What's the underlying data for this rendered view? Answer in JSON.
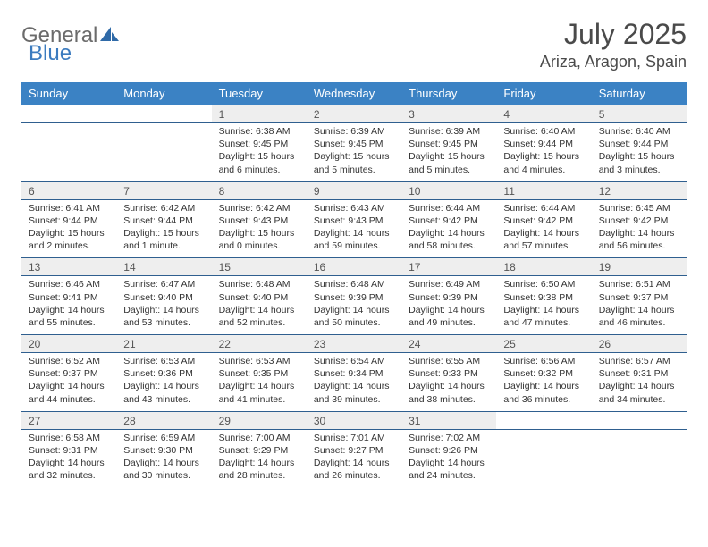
{
  "logo": {
    "part1": "General",
    "part2": "Blue"
  },
  "title": "July 2025",
  "location": "Ariza, Aragon, Spain",
  "colors": {
    "header_bg": "#3b82c4",
    "header_text": "#ffffff",
    "row_border": "#2f5f8f",
    "daynum_bg": "#eeeeee",
    "logo_gray": "#6b6b6b",
    "logo_blue": "#3b7bbf"
  },
  "day_headers": [
    "Sunday",
    "Monday",
    "Tuesday",
    "Wednesday",
    "Thursday",
    "Friday",
    "Saturday"
  ],
  "weeks": [
    [
      null,
      null,
      {
        "n": "1",
        "sunrise": "6:38 AM",
        "sunset": "9:45 PM",
        "daylight": "15 hours and 6 minutes."
      },
      {
        "n": "2",
        "sunrise": "6:39 AM",
        "sunset": "9:45 PM",
        "daylight": "15 hours and 5 minutes."
      },
      {
        "n": "3",
        "sunrise": "6:39 AM",
        "sunset": "9:45 PM",
        "daylight": "15 hours and 5 minutes."
      },
      {
        "n": "4",
        "sunrise": "6:40 AM",
        "sunset": "9:44 PM",
        "daylight": "15 hours and 4 minutes."
      },
      {
        "n": "5",
        "sunrise": "6:40 AM",
        "sunset": "9:44 PM",
        "daylight": "15 hours and 3 minutes."
      }
    ],
    [
      {
        "n": "6",
        "sunrise": "6:41 AM",
        "sunset": "9:44 PM",
        "daylight": "15 hours and 2 minutes."
      },
      {
        "n": "7",
        "sunrise": "6:42 AM",
        "sunset": "9:44 PM",
        "daylight": "15 hours and 1 minute."
      },
      {
        "n": "8",
        "sunrise": "6:42 AM",
        "sunset": "9:43 PM",
        "daylight": "15 hours and 0 minutes."
      },
      {
        "n": "9",
        "sunrise": "6:43 AM",
        "sunset": "9:43 PM",
        "daylight": "14 hours and 59 minutes."
      },
      {
        "n": "10",
        "sunrise": "6:44 AM",
        "sunset": "9:42 PM",
        "daylight": "14 hours and 58 minutes."
      },
      {
        "n": "11",
        "sunrise": "6:44 AM",
        "sunset": "9:42 PM",
        "daylight": "14 hours and 57 minutes."
      },
      {
        "n": "12",
        "sunrise": "6:45 AM",
        "sunset": "9:42 PM",
        "daylight": "14 hours and 56 minutes."
      }
    ],
    [
      {
        "n": "13",
        "sunrise": "6:46 AM",
        "sunset": "9:41 PM",
        "daylight": "14 hours and 55 minutes."
      },
      {
        "n": "14",
        "sunrise": "6:47 AM",
        "sunset": "9:40 PM",
        "daylight": "14 hours and 53 minutes."
      },
      {
        "n": "15",
        "sunrise": "6:48 AM",
        "sunset": "9:40 PM",
        "daylight": "14 hours and 52 minutes."
      },
      {
        "n": "16",
        "sunrise": "6:48 AM",
        "sunset": "9:39 PM",
        "daylight": "14 hours and 50 minutes."
      },
      {
        "n": "17",
        "sunrise": "6:49 AM",
        "sunset": "9:39 PM",
        "daylight": "14 hours and 49 minutes."
      },
      {
        "n": "18",
        "sunrise": "6:50 AM",
        "sunset": "9:38 PM",
        "daylight": "14 hours and 47 minutes."
      },
      {
        "n": "19",
        "sunrise": "6:51 AM",
        "sunset": "9:37 PM",
        "daylight": "14 hours and 46 minutes."
      }
    ],
    [
      {
        "n": "20",
        "sunrise": "6:52 AM",
        "sunset": "9:37 PM",
        "daylight": "14 hours and 44 minutes."
      },
      {
        "n": "21",
        "sunrise": "6:53 AM",
        "sunset": "9:36 PM",
        "daylight": "14 hours and 43 minutes."
      },
      {
        "n": "22",
        "sunrise": "6:53 AM",
        "sunset": "9:35 PM",
        "daylight": "14 hours and 41 minutes."
      },
      {
        "n": "23",
        "sunrise": "6:54 AM",
        "sunset": "9:34 PM",
        "daylight": "14 hours and 39 minutes."
      },
      {
        "n": "24",
        "sunrise": "6:55 AM",
        "sunset": "9:33 PM",
        "daylight": "14 hours and 38 minutes."
      },
      {
        "n": "25",
        "sunrise": "6:56 AM",
        "sunset": "9:32 PM",
        "daylight": "14 hours and 36 minutes."
      },
      {
        "n": "26",
        "sunrise": "6:57 AM",
        "sunset": "9:31 PM",
        "daylight": "14 hours and 34 minutes."
      }
    ],
    [
      {
        "n": "27",
        "sunrise": "6:58 AM",
        "sunset": "9:31 PM",
        "daylight": "14 hours and 32 minutes."
      },
      {
        "n": "28",
        "sunrise": "6:59 AM",
        "sunset": "9:30 PM",
        "daylight": "14 hours and 30 minutes."
      },
      {
        "n": "29",
        "sunrise": "7:00 AM",
        "sunset": "9:29 PM",
        "daylight": "14 hours and 28 minutes."
      },
      {
        "n": "30",
        "sunrise": "7:01 AM",
        "sunset": "9:27 PM",
        "daylight": "14 hours and 26 minutes."
      },
      {
        "n": "31",
        "sunrise": "7:02 AM",
        "sunset": "9:26 PM",
        "daylight": "14 hours and 24 minutes."
      },
      null,
      null
    ]
  ],
  "labels": {
    "sunrise": "Sunrise:",
    "sunset": "Sunset:",
    "daylight": "Daylight:"
  }
}
